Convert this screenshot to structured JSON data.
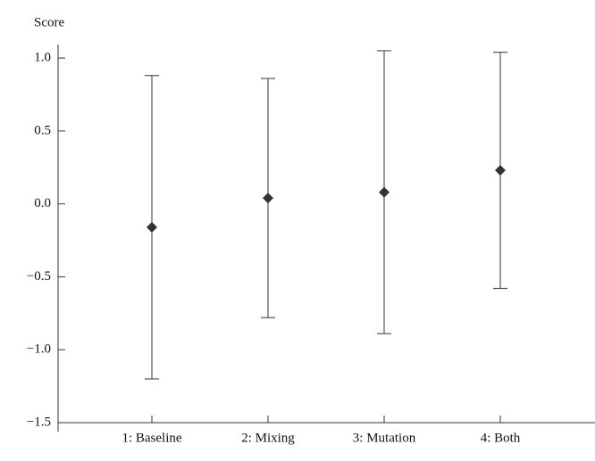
{
  "chart_data": {
    "type": "errorbar",
    "y_label": "Score",
    "categories": [
      "1: Baseline",
      "2: Mixing",
      "3: Mutation",
      "4: Both"
    ],
    "values": [
      -0.16,
      0.04,
      0.08,
      0.23
    ],
    "errors": [
      1.04,
      0.82,
      0.97,
      0.81
    ],
    "color": "#333333",
    "errorbar_color": "#555555",
    "ylim": [
      -1.5,
      1.08
    ],
    "yticks": [
      {
        "value": -1.5,
        "label": "−1.5"
      },
      {
        "value": -1.0,
        "label": "−1.0"
      },
      {
        "value": -0.5,
        "label": "−0.5"
      },
      {
        "value": 0.0,
        "label": "0.0"
      },
      {
        "value": 0.5,
        "label": "0.5"
      },
      {
        "value": 1.0,
        "label": "1.0"
      }
    ],
    "grid": false
  }
}
